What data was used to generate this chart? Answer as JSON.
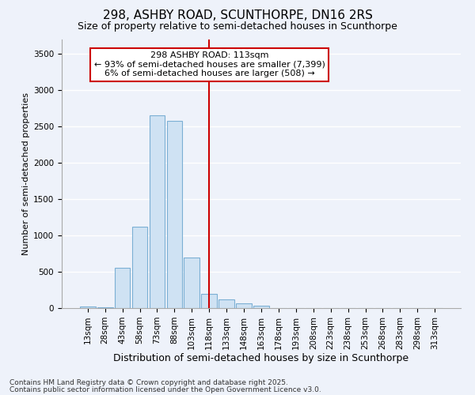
{
  "title1": "298, ASHBY ROAD, SCUNTHORPE, DN16 2RS",
  "title2": "Size of property relative to semi-detached houses in Scunthorpe",
  "xlabel": "Distribution of semi-detached houses by size in Scunthorpe",
  "ylabel": "Number of semi-detached properties",
  "categories": [
    "13sqm",
    "28sqm",
    "43sqm",
    "58sqm",
    "73sqm",
    "88sqm",
    "103sqm",
    "118sqm",
    "133sqm",
    "148sqm",
    "163sqm",
    "178sqm",
    "193sqm",
    "208sqm",
    "223sqm",
    "238sqm",
    "253sqm",
    "268sqm",
    "283sqm",
    "298sqm",
    "313sqm"
  ],
  "values": [
    20,
    10,
    560,
    1120,
    2660,
    2580,
    700,
    200,
    120,
    70,
    30,
    5,
    3,
    1,
    0,
    0,
    0,
    0,
    0,
    0,
    0
  ],
  "bar_color": "#cfe2f3",
  "bar_edge_color": "#7bafd4",
  "vline_index": 7,
  "vline_color": "#cc0000",
  "ylim": [
    0,
    3700
  ],
  "yticks": [
    0,
    500,
    1000,
    1500,
    2000,
    2500,
    3000,
    3500
  ],
  "annotation_text": "298 ASHBY ROAD: 113sqm\n← 93% of semi-detached houses are smaller (7,399)\n6% of semi-detached houses are larger (508) →",
  "annotation_box_facecolor": "#ffffff",
  "annotation_box_edgecolor": "#cc0000",
  "footer1": "Contains HM Land Registry data © Crown copyright and database right 2025.",
  "footer2": "Contains public sector information licensed under the Open Government Licence v3.0.",
  "background_color": "#eef2fa",
  "grid_color": "#ffffff",
  "title1_fontsize": 11,
  "title2_fontsize": 9,
  "xlabel_fontsize": 9,
  "ylabel_fontsize": 8,
  "tick_fontsize": 7.5,
  "annotation_fontsize": 8,
  "footer_fontsize": 6.5
}
